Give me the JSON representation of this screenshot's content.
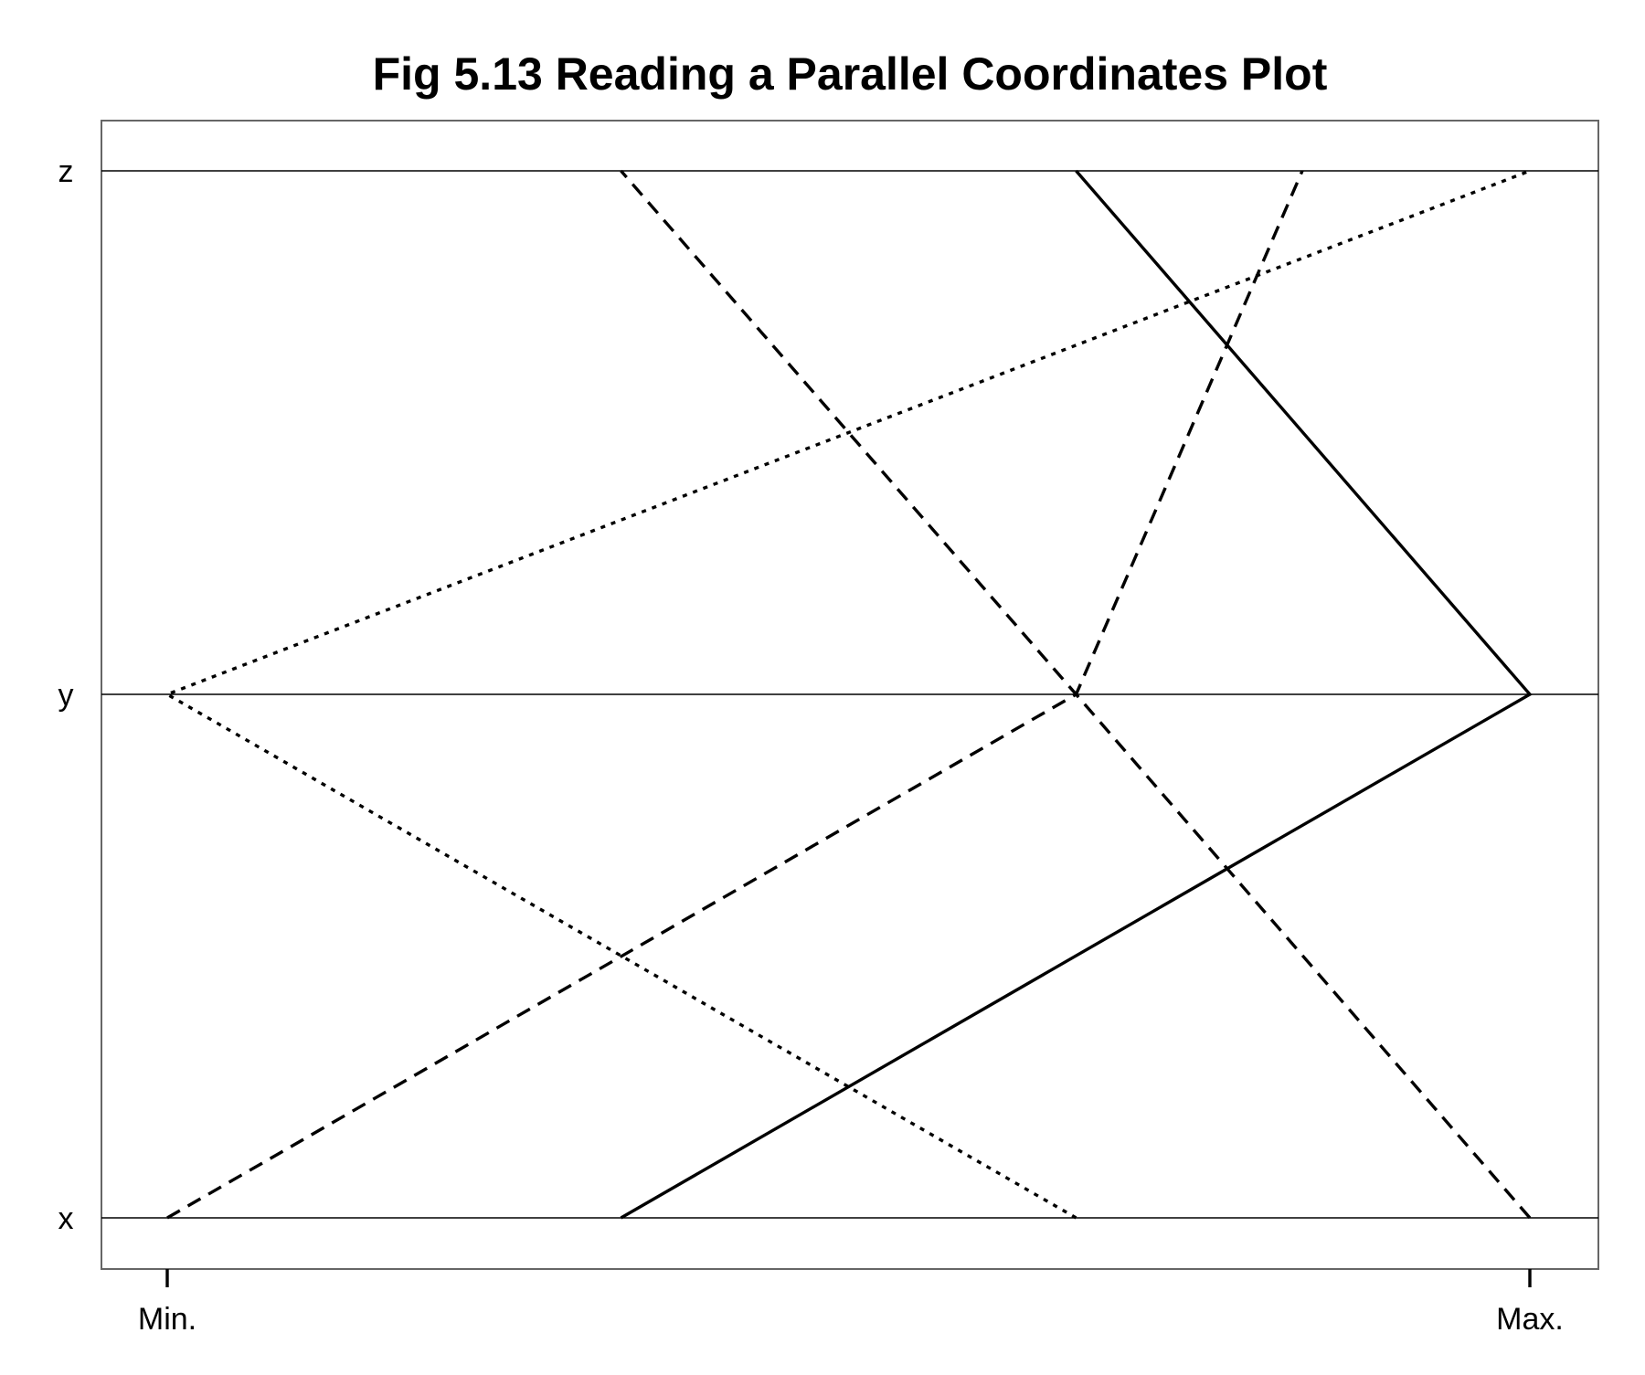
{
  "chart_data": {
    "type": "line",
    "title": "Fig 5.13 Reading a Parallel Coordinates Plot",
    "variables": [
      "x",
      "y",
      "z"
    ],
    "scale_tick_labels": [
      "Min.",
      "Max."
    ],
    "range": [
      0,
      1
    ],
    "grid": false,
    "legend": "none",
    "series": [
      {
        "style": "dotted",
        "values": [
          0.667,
          0.0,
          1.0
        ]
      },
      {
        "style": "dashed",
        "values": [
          0.0,
          0.667,
          0.833
        ]
      },
      {
        "style": "dashed",
        "values": [
          1.0,
          0.667,
          0.333
        ]
      },
      {
        "style": "solid",
        "values": [
          0.333,
          1.0,
          0.667
        ]
      }
    ]
  }
}
